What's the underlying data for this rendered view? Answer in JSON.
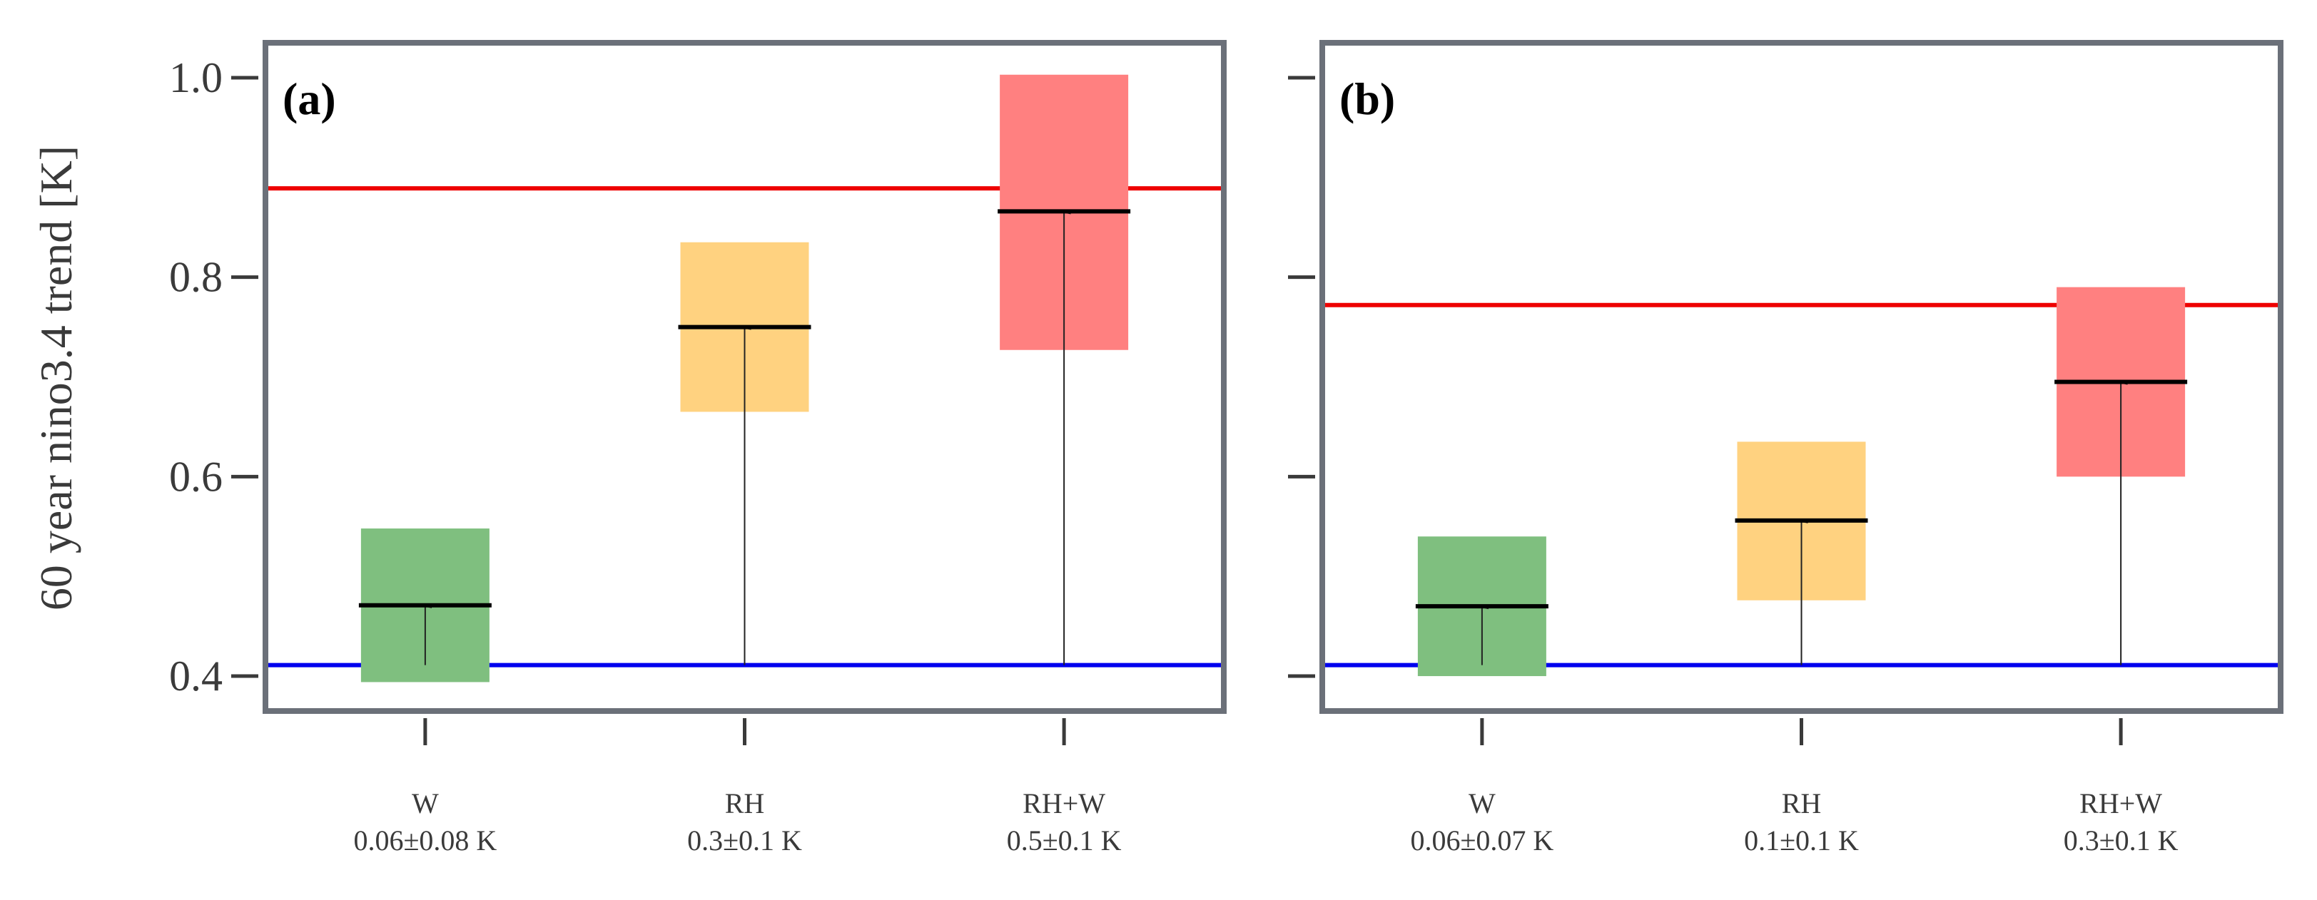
{
  "chart_data": [
    {
      "type": "bar",
      "panel_label": "(a)",
      "ylabel": "60 year nino3.4 trend [K]",
      "ylim": [
        0.365,
        1.035
      ],
      "yticks": [
        0.4,
        0.6,
        0.8,
        1.0
      ],
      "ytick_labels": [
        "0.4",
        "0.6",
        "0.8",
        "1.0"
      ],
      "categories": [
        "W",
        "RH",
        "RH+W"
      ],
      "category_sublabels": [
        "0.06±0.08 K",
        "0.3±0.1 K",
        "0.5±0.1 K"
      ],
      "box_low": [
        0.394,
        0.665,
        0.727
      ],
      "box_high": [
        0.548,
        0.835,
        1.003
      ],
      "means": [
        0.471,
        0.75,
        0.866
      ],
      "arrow_start": [
        0.411,
        0.411,
        0.411
      ],
      "box_colors": [
        "#7fbf7f",
        "#ffd280",
        "#ff8080"
      ],
      "reference_lines": [
        {
          "value": 0.889,
          "color": "#ee0000"
        },
        {
          "value": 0.411,
          "color": "#0000ee"
        }
      ]
    },
    {
      "type": "bar",
      "panel_label": "(b)",
      "ylabel": "",
      "ylim": [
        0.365,
        1.035
      ],
      "yticks": [
        0.4,
        0.6,
        0.8,
        1.0
      ],
      "ytick_labels": [],
      "categories": [
        "W",
        "RH",
        "RH+W"
      ],
      "category_sublabels": [
        "0.06±0.07 K",
        "0.1±0.1 K",
        "0.3±0.1 K"
      ],
      "box_low": [
        0.4,
        0.476,
        0.6
      ],
      "box_high": [
        0.54,
        0.635,
        0.79
      ],
      "means": [
        0.47,
        0.556,
        0.695
      ],
      "arrow_start": [
        0.411,
        0.411,
        0.411
      ],
      "box_colors": [
        "#7fbf7f",
        "#ffd280",
        "#ff8080"
      ],
      "reference_lines": [
        {
          "value": 0.772,
          "color": "#ee0000"
        },
        {
          "value": 0.411,
          "color": "#0000ee"
        }
      ]
    }
  ]
}
